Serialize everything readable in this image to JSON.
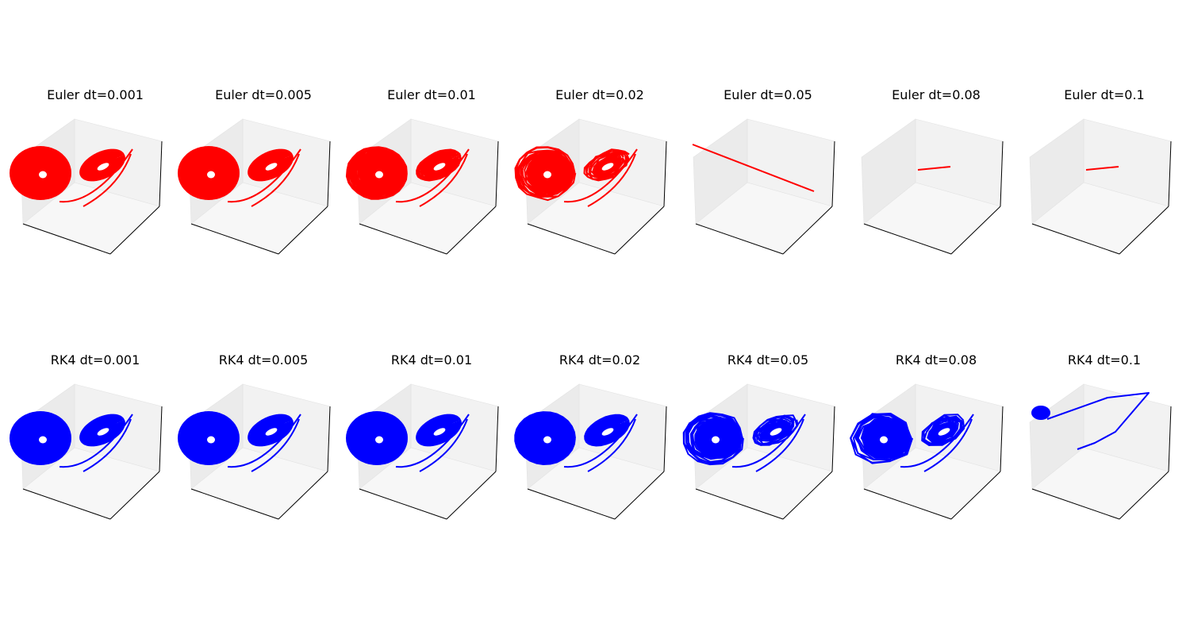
{
  "chart_data": [
    {
      "type": "line",
      "method": "Euler",
      "title": "Euler dt=0.001",
      "dt": 0.001,
      "color": "#ff0000",
      "behavior": "attractor",
      "roughness": 0.0
    },
    {
      "type": "line",
      "method": "Euler",
      "title": "Euler dt=0.005",
      "dt": 0.005,
      "color": "#ff0000",
      "behavior": "attractor",
      "roughness": 0.0
    },
    {
      "type": "line",
      "method": "Euler",
      "title": "Euler dt=0.01",
      "dt": 0.01,
      "color": "#ff0000",
      "behavior": "attractor",
      "roughness": 0.15
    },
    {
      "type": "line",
      "method": "Euler",
      "title": "Euler dt=0.02",
      "dt": 0.02,
      "color": "#ff0000",
      "behavior": "attractor",
      "roughness": 0.6
    },
    {
      "type": "line",
      "method": "Euler",
      "title": "Euler dt=0.05",
      "dt": 0.05,
      "color": "#ff0000",
      "behavior": "diverged-line",
      "roughness": 0.0
    },
    {
      "type": "line",
      "method": "Euler",
      "title": "Euler dt=0.08",
      "dt": 0.08,
      "color": "#ff0000",
      "behavior": "short-segment",
      "roughness": 0.0
    },
    {
      "type": "line",
      "method": "Euler",
      "title": "Euler dt=0.1",
      "dt": 0.1,
      "color": "#ff0000",
      "behavior": "short-segment",
      "roughness": 0.0
    },
    {
      "type": "line",
      "method": "RK4",
      "title": "RK4 dt=0.001",
      "dt": 0.001,
      "color": "#0000ff",
      "behavior": "attractor",
      "roughness": 0.0
    },
    {
      "type": "line",
      "method": "RK4",
      "title": "RK4 dt=0.005",
      "dt": 0.005,
      "color": "#0000ff",
      "behavior": "attractor",
      "roughness": 0.0
    },
    {
      "type": "line",
      "method": "RK4",
      "title": "RK4 dt=0.01",
      "dt": 0.01,
      "color": "#0000ff",
      "behavior": "attractor",
      "roughness": 0.0
    },
    {
      "type": "line",
      "method": "RK4",
      "title": "RK4 dt=0.02",
      "dt": 0.02,
      "color": "#0000ff",
      "behavior": "attractor",
      "roughness": 0.05
    },
    {
      "type": "line",
      "method": "RK4",
      "title": "RK4 dt=0.05",
      "dt": 0.05,
      "color": "#0000ff",
      "behavior": "attractor",
      "roughness": 0.7
    },
    {
      "type": "line",
      "method": "RK4",
      "title": "RK4 dt=0.08",
      "dt": 0.08,
      "color": "#0000ff",
      "behavior": "attractor",
      "roughness": 1.0
    },
    {
      "type": "line",
      "method": "RK4",
      "title": "RK4 dt=0.1",
      "dt": 0.1,
      "color": "#0000ff",
      "behavior": "collapsed",
      "roughness": 0.0
    }
  ],
  "axes": {
    "ticks_visible": false,
    "pane_colors": [
      "#f2f2f2",
      "#ebebeb",
      "#f7f7f7"
    ]
  }
}
